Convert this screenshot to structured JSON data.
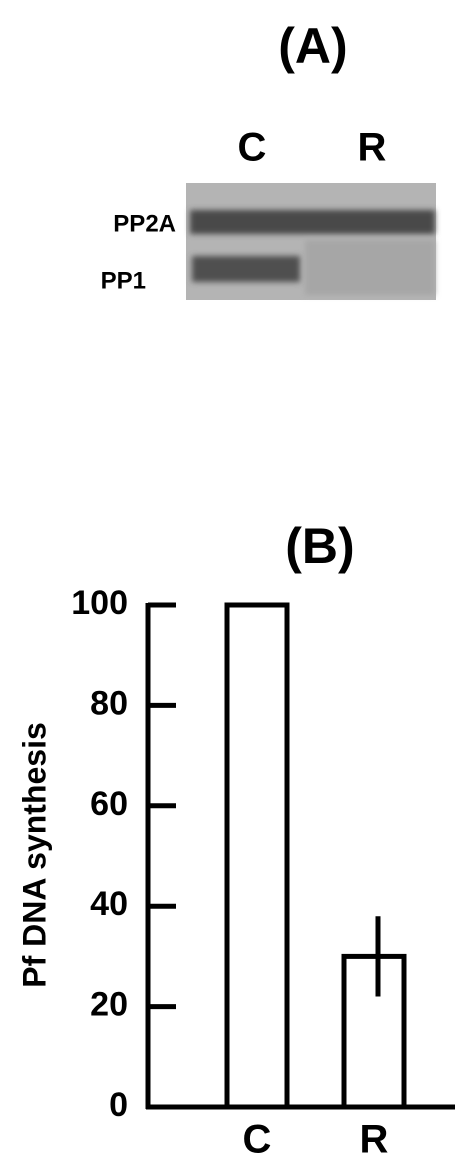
{
  "panel_a": {
    "label": "(A)",
    "lanes": [
      "C",
      "R"
    ],
    "bands": [
      "PP2A",
      "PP1"
    ]
  },
  "chart_data": {
    "type": "bar",
    "title": "(B)",
    "y_label": "Pf DNA synthesis",
    "categories": [
      "C",
      "R"
    ],
    "values": [
      100,
      30
    ],
    "errors": [
      null,
      8
    ],
    "color": "#ffffff",
    "ylim": [
      0,
      100
    ],
    "yticks": [
      0,
      20,
      40,
      60,
      80,
      100
    ]
  }
}
